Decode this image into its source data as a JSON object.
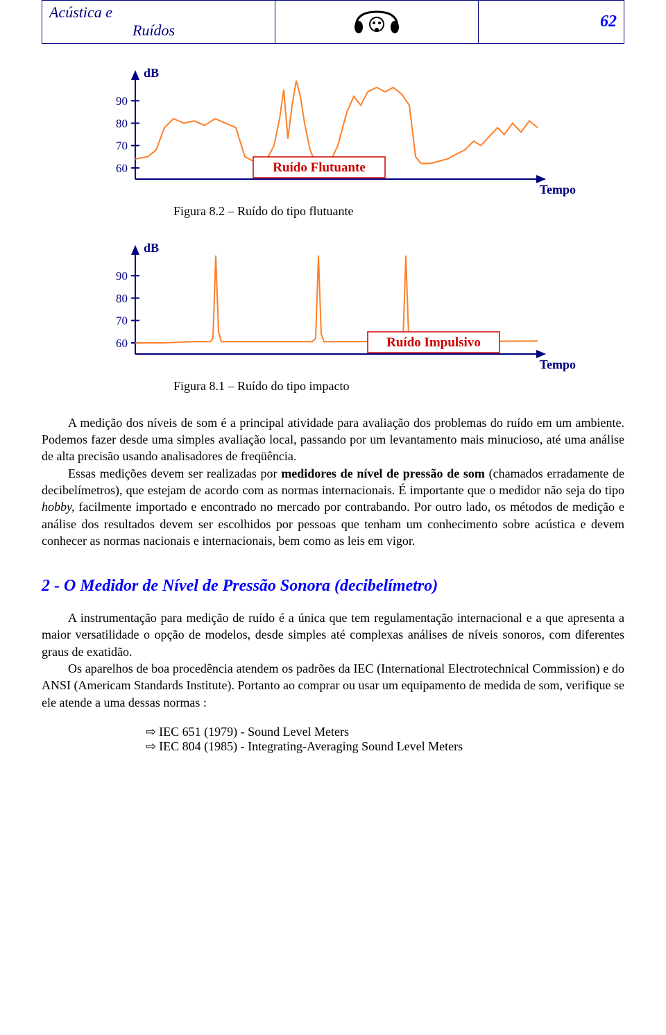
{
  "header": {
    "title_line1": "Acústica   e",
    "title_line2": "Ruídos",
    "page_number": "62",
    "border_color": "#000080",
    "title_color": "#000080",
    "pagenum_color": "#0000ff"
  },
  "chart1": {
    "type": "line",
    "axis_label": "dB",
    "axis_label_color": "#000080",
    "yticks": [
      "90",
      "80",
      "70",
      "60"
    ],
    "ytick_color": "#000080",
    "box_label": "Ruído Flutuante",
    "box_text_color": "#cc0000",
    "box_border_color": "#cc0000",
    "xlabel": "Tempo",
    "xlabel_color": "#000080",
    "line_color": "#ff7f27",
    "axis_color": "#000080",
    "line_width": 2,
    "ylim": [
      55,
      100
    ],
    "caption": "Figura 8.2 – Ruído do tipo flutuante",
    "points": [
      [
        0,
        64
      ],
      [
        18,
        65
      ],
      [
        30,
        68
      ],
      [
        42,
        78
      ],
      [
        55,
        82
      ],
      [
        70,
        80
      ],
      [
        85,
        81
      ],
      [
        100,
        79
      ],
      [
        115,
        82
      ],
      [
        130,
        80
      ],
      [
        145,
        78
      ],
      [
        158,
        65
      ],
      [
        170,
        63
      ],
      [
        180,
        62
      ],
      [
        190,
        64
      ],
      [
        200,
        70
      ],
      [
        208,
        82
      ],
      [
        214,
        95
      ],
      [
        220,
        73
      ],
      [
        226,
        88
      ],
      [
        232,
        99
      ],
      [
        238,
        92
      ],
      [
        244,
        80
      ],
      [
        252,
        68
      ],
      [
        260,
        62
      ],
      [
        270,
        61
      ],
      [
        280,
        62
      ],
      [
        292,
        70
      ],
      [
        305,
        85
      ],
      [
        315,
        92
      ],
      [
        325,
        88
      ],
      [
        335,
        94
      ],
      [
        348,
        96
      ],
      [
        360,
        94
      ],
      [
        372,
        96
      ],
      [
        384,
        93
      ],
      [
        395,
        88
      ],
      [
        404,
        65
      ],
      [
        412,
        62
      ],
      [
        425,
        62
      ],
      [
        438,
        63
      ],
      [
        450,
        64
      ],
      [
        462,
        66
      ],
      [
        475,
        68
      ],
      [
        488,
        72
      ],
      [
        498,
        70
      ],
      [
        510,
        74
      ],
      [
        522,
        78
      ],
      [
        532,
        75
      ],
      [
        544,
        80
      ],
      [
        556,
        76
      ],
      [
        568,
        81
      ],
      [
        580,
        78
      ]
    ]
  },
  "chart2": {
    "type": "line",
    "axis_label": "dB",
    "axis_label_color": "#000080",
    "yticks": [
      "90",
      "80",
      "70",
      "60"
    ],
    "ytick_color": "#000080",
    "box_label": "Ruído Impulsivo",
    "box_text_color": "#cc0000",
    "box_border_color": "#cc0000",
    "xlabel": "Tempo",
    "xlabel_color": "#000080",
    "line_color": "#ff7f27",
    "axis_color": "#000080",
    "line_width": 2,
    "ylim": [
      55,
      100
    ],
    "caption": "Figura 8.1 – Ruído do tipo impacto",
    "points": [
      [
        0,
        60
      ],
      [
        40,
        60
      ],
      [
        80,
        60.5
      ],
      [
        108,
        60.5
      ],
      [
        112,
        62
      ],
      [
        116,
        99
      ],
      [
        120,
        65
      ],
      [
        124,
        60.5
      ],
      [
        160,
        60.5
      ],
      [
        210,
        60.5
      ],
      [
        255,
        60.5
      ],
      [
        260,
        62
      ],
      [
        264,
        99
      ],
      [
        268,
        64
      ],
      [
        272,
        60.5
      ],
      [
        320,
        60.5
      ],
      [
        380,
        60.7
      ],
      [
        386,
        62
      ],
      [
        390,
        99
      ],
      [
        394,
        63
      ],
      [
        398,
        60.6
      ],
      [
        450,
        60.6
      ],
      [
        520,
        60.7
      ],
      [
        580,
        60.8
      ]
    ]
  },
  "paragraphs": {
    "p1": "A medição dos níveis de som é a principal atividade para avaliação dos problemas do ruído em um ambiente. Podemos fazer desde uma simples avaliação local, passando por um levantamento mais minucioso, até uma análise de alta precisão usando analisadores de freqüência.",
    "p2a": "Essas medições devem ser realizadas por ",
    "p2b": "medidores de nível de pressão de som",
    "p2c": " (chamados erradamente de decibelímetros), que estejam de acordo com as normas internacionais. É importante que o medidor não seja do tipo ",
    "p2d": "hobby,",
    "p2e": " facilmente importado e encontrado no mercado por contrabando. Por outro lado, os métodos de medição e análise dos resultados devem ser escolhidos por pessoas que tenham um conhecimento sobre acústica e devem conhecer as normas nacionais e internacionais, bem como as leis em vigor."
  },
  "section2": {
    "heading": "2  - O Medidor de Nível de Pressão Sonora (decibelímetro)",
    "p1": "A instrumentação para medição de ruído é a única que tem regulamentação internacional e a que apresenta a maior versatilidade o opção de modelos, desde simples até complexas análises de níveis sonoros, com diferentes graus de exatidão.",
    "p2": "Os aparelhos de boa procedência atendem os padrões da IEC (International Electrotechnical Commission) e do ANSI (Americam Standards Institute). Portanto ao comprar ou usar um equipamento de medida de som, verifique se ele atende a uma dessas normas :",
    "standards": [
      "IEC 651 (1979) - Sound Level Meters",
      "IEC 804 (1985) - Integrating-Averaging Sound Level Meters"
    ]
  }
}
